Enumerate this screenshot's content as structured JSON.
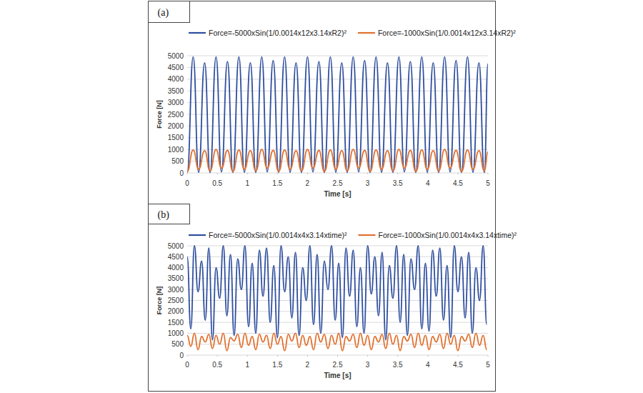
{
  "chart_data": [
    {
      "type": "line",
      "title": "(a)",
      "x_label": "Time [s]",
      "y_label": "Force [N]",
      "x": [
        0,
        0.1,
        0.19,
        0.29,
        0.38,
        0.48,
        0.57,
        0.67,
        0.76,
        0.86,
        0.95,
        1.05,
        1.14,
        1.24,
        1.33,
        1.43,
        1.52,
        1.62,
        1.71,
        1.81,
        1.9,
        2,
        2.09,
        2.19,
        2.28,
        2.38,
        2.47,
        2.57,
        2.66,
        2.76,
        2.85,
        2.95,
        3.04,
        3.14,
        3.23,
        3.33,
        3.42,
        3.52,
        3.61,
        3.71,
        3.8,
        3.9,
        3.99,
        4.09,
        4.18,
        4.28,
        4.37,
        4.47,
        4.56,
        4.66,
        4.75,
        4.85,
        4.94,
        5
      ],
      "series": [
        {
          "name": "Force=-5000xSin(1/0.0014x12x3.14xR2)²",
          "color": "#2f4f9f",
          "values": [
            20,
            4950,
            30,
            4700,
            20,
            4950,
            40,
            4750,
            20,
            4950,
            30,
            4700,
            20,
            4950,
            40,
            4800,
            20,
            4950,
            30,
            4700,
            20,
            4950,
            40,
            4750,
            20,
            4950,
            30,
            4700,
            20,
            4950,
            40,
            4800,
            20,
            4950,
            30,
            4700,
            20,
            4950,
            40,
            4750,
            20,
            4950,
            30,
            4700,
            20,
            4950,
            40,
            4800,
            20,
            4950,
            30,
            4700,
            20,
            4650
          ]
        },
        {
          "name": "Force=-1000xSin(1/0.0014x12x3.14xR2)²",
          "color": "#e2702e",
          "values": [
            60,
            980,
            150,
            950,
            80,
            1000,
            200,
            960,
            60,
            980,
            150,
            950,
            80,
            1000,
            200,
            960,
            60,
            980,
            150,
            950,
            80,
            1000,
            200,
            960,
            60,
            980,
            150,
            950,
            80,
            1000,
            200,
            960,
            60,
            980,
            150,
            950,
            80,
            1000,
            200,
            960,
            60,
            980,
            150,
            950,
            80,
            1000,
            200,
            960,
            60,
            980,
            150,
            950,
            80,
            900
          ]
        }
      ],
      "xlim": [
        0,
        5
      ],
      "xticks": [
        0,
        0.5,
        1,
        1.5,
        2,
        2.5,
        3,
        3.5,
        4,
        4.5,
        5
      ],
      "ylim": [
        0,
        5000
      ],
      "yticks": [
        0,
        500,
        1000,
        1500,
        2000,
        2500,
        3000,
        3500,
        4000,
        4500,
        5000
      ],
      "grid": true,
      "legend": "top"
    },
    {
      "type": "line",
      "title": "(b)",
      "x_label": "Time [s]",
      "y_label": "Force [N]",
      "x": [
        0,
        0.06,
        0.12,
        0.18,
        0.24,
        0.3,
        0.36,
        0.42,
        0.48,
        0.54,
        0.6,
        0.66,
        0.72,
        0.78,
        0.84,
        0.9,
        0.96,
        1.02,
        1.08,
        1.14,
        1.2,
        1.26,
        1.32,
        1.38,
        1.44,
        1.5,
        1.56,
        1.62,
        1.68,
        1.74,
        1.8,
        1.86,
        1.92,
        1.98,
        2.04,
        2.1,
        2.16,
        2.22,
        2.28,
        2.34,
        2.4,
        2.46,
        2.52,
        2.58,
        2.64,
        2.7,
        2.76,
        2.82,
        2.88,
        2.94,
        3,
        3.06,
        3.12,
        3.18,
        3.24,
        3.3,
        3.36,
        3.42,
        3.48,
        3.54,
        3.6,
        3.66,
        3.72,
        3.78,
        3.84,
        3.9,
        3.96,
        4.02,
        4.08,
        4.14,
        4.2,
        4.26,
        4.32,
        4.38,
        4.44,
        4.5,
        4.56,
        4.62,
        4.68,
        4.74,
        4.8,
        4.86,
        4.92,
        4.98
      ],
      "series": [
        {
          "name": "Force=-5000xSin(1/0.0014x4x3.14xtime)²",
          "color": "#2f4f9f",
          "values": [
            4500,
            1200,
            5000,
            2900,
            4300,
            1600,
            4900,
            700,
            4000,
            2600,
            5000,
            1800,
            4600,
            900,
            4400,
            3000,
            5000,
            1300,
            4200,
            1000,
            4800,
            2700,
            4900,
            1500,
            4100,
            800,
            5000,
            2900,
            4500,
            1700,
            4700,
            900,
            4000,
            2500,
            5000,
            1400,
            4600,
            1000,
            4300,
            3000,
            5000,
            1600,
            4200,
            800,
            4900,
            2700,
            4800,
            1300,
            4000,
            1000,
            5000,
            2800,
            4500,
            1800,
            4700,
            700,
            4100,
            2600,
            5000,
            1500,
            4600,
            900,
            4400,
            3000,
            5000,
            1200,
            4200,
            1100,
            4800,
            2700,
            4900,
            1600,
            4100,
            800,
            5000,
            2900,
            4500,
            1700,
            4700,
            1000,
            4000,
            2500,
            5000,
            1400
          ]
        },
        {
          "name": "Force=-1000xSin(1/0.0014x4x3.14xtime)²",
          "color": "#e2702e",
          "values": [
            900,
            400,
            1000,
            250,
            850,
            600,
            950,
            300,
            900,
            500,
            1000,
            200,
            800,
            650,
            950,
            350,
            1000,
            450,
            850,
            250,
            950,
            600,
            900,
            300,
            1000,
            500,
            850,
            200,
            950,
            650,
            1000,
            350,
            900,
            450,
            850,
            250,
            1000,
            600,
            950,
            300,
            900,
            500,
            1000,
            200,
            850,
            650,
            950,
            350,
            1000,
            450,
            900,
            250,
            850,
            600,
            950,
            300,
            1000,
            500,
            900,
            200,
            850,
            650,
            950,
            350,
            1000,
            450,
            900,
            250,
            850,
            600,
            950,
            300,
            1000,
            500,
            900,
            200,
            850,
            650,
            950,
            350,
            1000,
            450,
            900,
            250
          ]
        }
      ],
      "xlim": [
        0,
        5
      ],
      "xticks": [
        0,
        0.5,
        1,
        1.5,
        2,
        2.5,
        3,
        3.5,
        4,
        4.5,
        5
      ],
      "ylim": [
        0,
        5000
      ],
      "yticks": [
        0,
        500,
        1000,
        1500,
        2000,
        2500,
        3000,
        3500,
        4000,
        4500,
        5000
      ],
      "grid": true,
      "legend": "top"
    }
  ]
}
